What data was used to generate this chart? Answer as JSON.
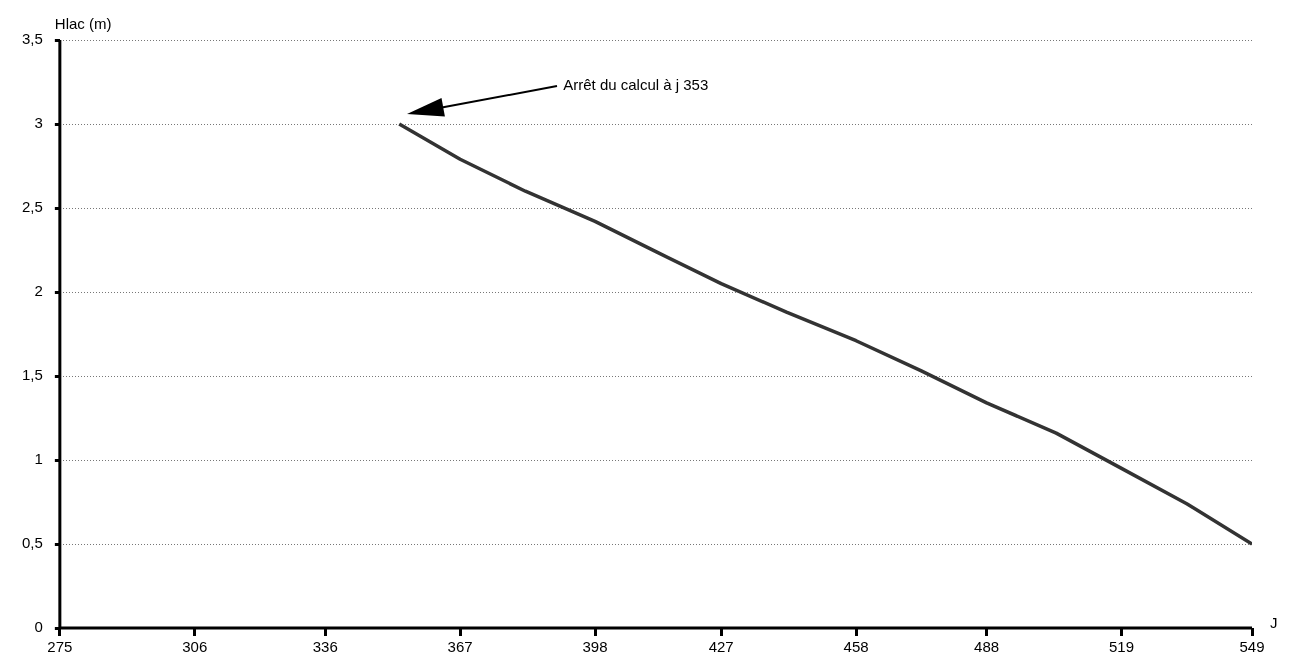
{
  "chart_data": {
    "type": "line",
    "ylabel": "Hlac (m)",
    "xlabel": "J",
    "x": [
      353,
      367,
      382,
      398,
      412,
      427,
      442,
      458,
      473,
      488,
      504,
      519,
      534,
      549
    ],
    "series": [
      {
        "color": "#333333",
        "values": [
          3.0,
          2.79,
          2.6,
          2.42,
          2.24,
          2.05,
          1.88,
          1.71,
          1.53,
          1.34,
          1.16,
          0.95,
          0.74,
          0.5
        ]
      }
    ],
    "xlim": [
      275,
      549
    ],
    "xticks": [
      275,
      306,
      336,
      367,
      398,
      427,
      458,
      488,
      519,
      549
    ],
    "ylim": [
      0,
      3.5
    ],
    "yticks": [
      0,
      {
        "value": 0.5,
        "label": "0,5"
      },
      1,
      {
        "value": 1.5,
        "label": "1,5"
      },
      2,
      {
        "value": 2.5,
        "label": "2,5"
      },
      3,
      {
        "value": 3.5,
        "label": "3,5"
      }
    ],
    "grid": "y",
    "marker": "none",
    "line_style": "solid",
    "legend": false,
    "annotations": [
      "Arrêt du calcul à j 353"
    ]
  }
}
